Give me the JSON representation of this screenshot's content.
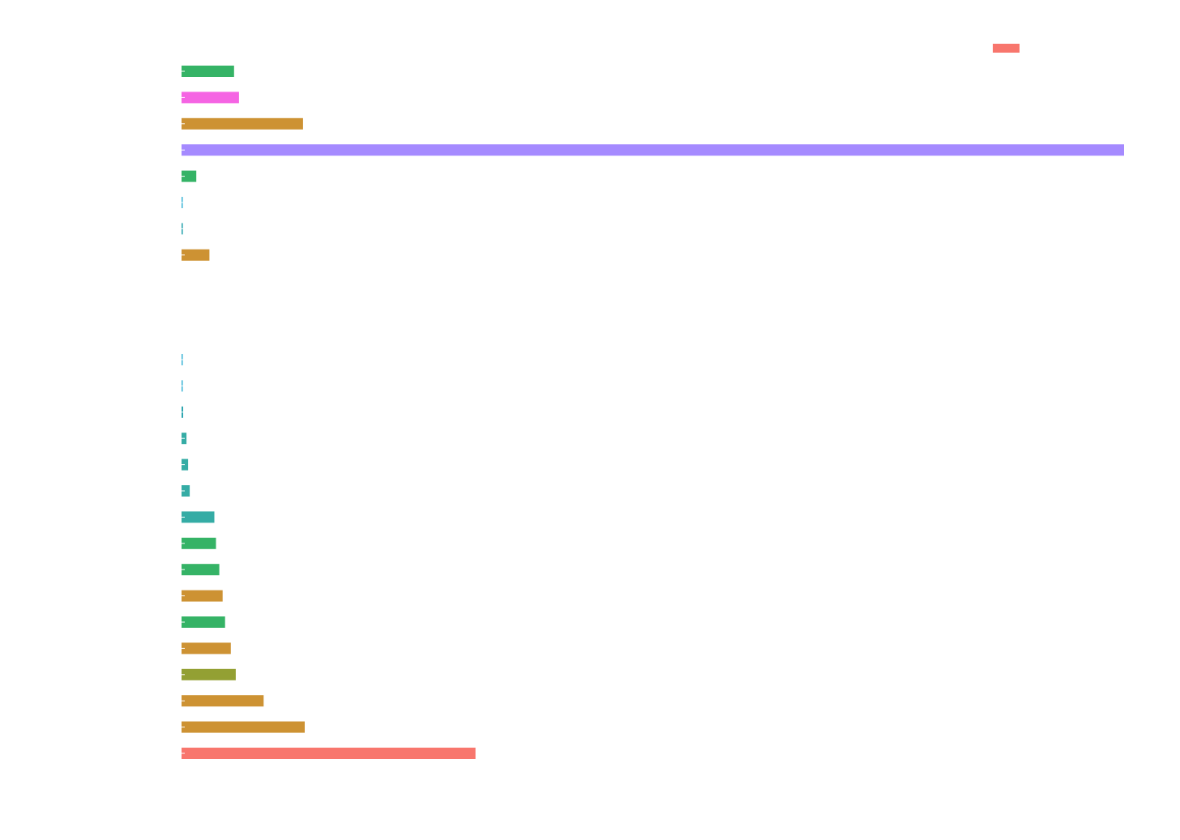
{
  "chart_data": {
    "type": "bar",
    "orientation": "horizontal",
    "title": "",
    "xlabel": "",
    "ylabel": "",
    "grid": false,
    "legend": {
      "placement": "top-right",
      "entries": [
        {
          "color": "#F8766D"
        }
      ]
    },
    "xlim": [
      0,
      57.4
    ],
    "groups": [
      {
        "bars": [
          {
            "value": 3.2,
            "color": "#35B366"
          },
          {
            "value": 3.5,
            "color": "#F564E3"
          },
          {
            "value": 7.4,
            "color": "#CD9233"
          },
          {
            "value": 57.4,
            "color": "#A58AFF"
          },
          {
            "value": 0.9,
            "color": "#35B366"
          },
          {
            "value": 0.05,
            "color": "#39B3D6"
          },
          {
            "value": 0.08,
            "color": "#2FA6B0"
          },
          {
            "value": 1.7,
            "color": "#CD9233"
          }
        ]
      },
      {
        "bars": [
          {
            "value": 0.04,
            "color": "#39B3D6"
          },
          {
            "value": 0.06,
            "color": "#39B3D6"
          },
          {
            "value": 0.1,
            "color": "#2FA6B0"
          },
          {
            "value": 0.3,
            "color": "#35ACA5"
          },
          {
            "value": 0.4,
            "color": "#35ACA5"
          },
          {
            "value": 0.5,
            "color": "#35ACA5"
          },
          {
            "value": 2.0,
            "color": "#35ACA5"
          },
          {
            "value": 2.1,
            "color": "#35B366"
          },
          {
            "value": 2.3,
            "color": "#35B366"
          },
          {
            "value": 2.5,
            "color": "#CD9233"
          },
          {
            "value": 2.65,
            "color": "#35B366"
          },
          {
            "value": 3.0,
            "color": "#CD9233"
          },
          {
            "value": 3.3,
            "color": "#93A033"
          },
          {
            "value": 5.0,
            "color": "#CD9233"
          },
          {
            "value": 7.5,
            "color": "#CD9233"
          },
          {
            "value": 17.9,
            "color": "#F8766D"
          }
        ]
      }
    ]
  }
}
